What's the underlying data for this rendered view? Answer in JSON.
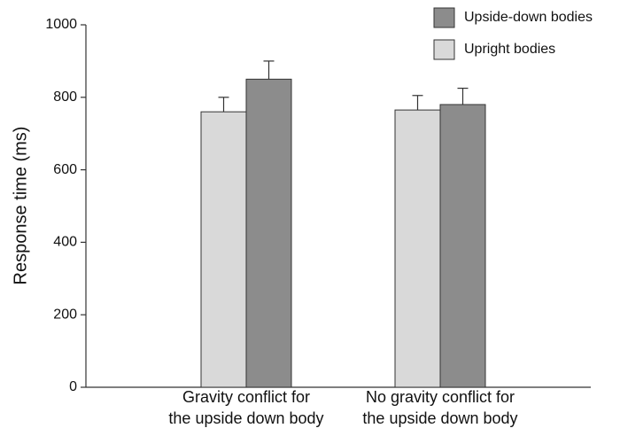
{
  "chart_data": {
    "type": "bar",
    "y_label": "Response time (ms)",
    "categories": [
      "Gravity conflict for\nthe upside down body",
      "No gravity conflict for\nthe upside down body"
    ],
    "series": [
      {
        "name": "Upright bodies",
        "color": "#d9d9d9",
        "values": [
          760,
          765
        ],
        "errors": [
          40,
          40
        ]
      },
      {
        "name": "Upside-down bodies",
        "color": "#8c8c8c",
        "values": [
          850,
          780
        ],
        "errors": [
          50,
          45
        ]
      }
    ],
    "ylim": [
      0,
      1000
    ],
    "yticks": [
      0,
      200,
      400,
      600,
      800,
      1000
    ],
    "legend": "upper right"
  }
}
